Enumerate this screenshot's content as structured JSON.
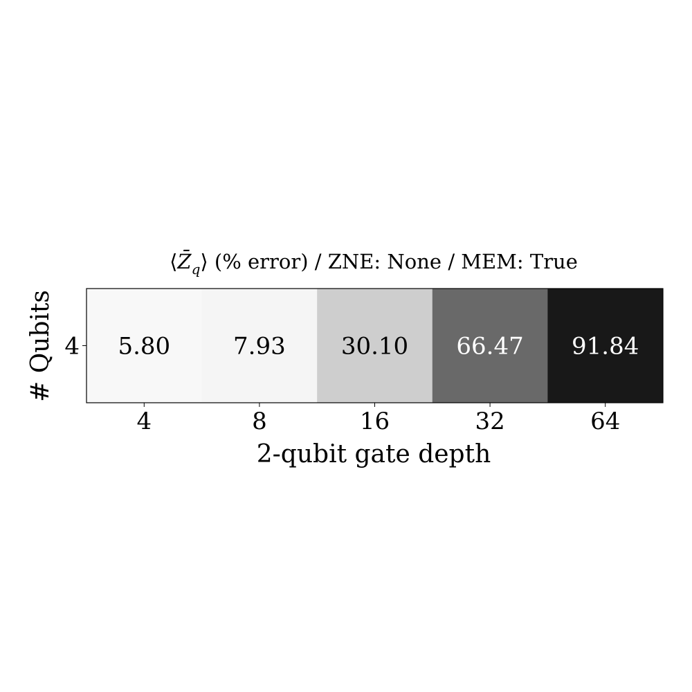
{
  "chart_data": {
    "type": "heatmap",
    "title": {
      "open": "⟨",
      "symbol": "Z̄",
      "subscript": "q",
      "rest": "⟩ (% error) / ZNE: None / MEM: True"
    },
    "xlabel": "2-qubit gate depth",
    "ylabel": "# Qubits",
    "x_categories": [
      "4",
      "8",
      "16",
      "32",
      "64"
    ],
    "y_categories": [
      "4"
    ],
    "values": [
      [
        5.8,
        7.93,
        30.1,
        66.47,
        91.84
      ]
    ],
    "value_labels": [
      [
        "5.80",
        "7.93",
        "30.10",
        "66.47",
        "91.84"
      ]
    ],
    "colormap": "Greys",
    "vmin": 0,
    "vmax": 100,
    "grid": false
  }
}
